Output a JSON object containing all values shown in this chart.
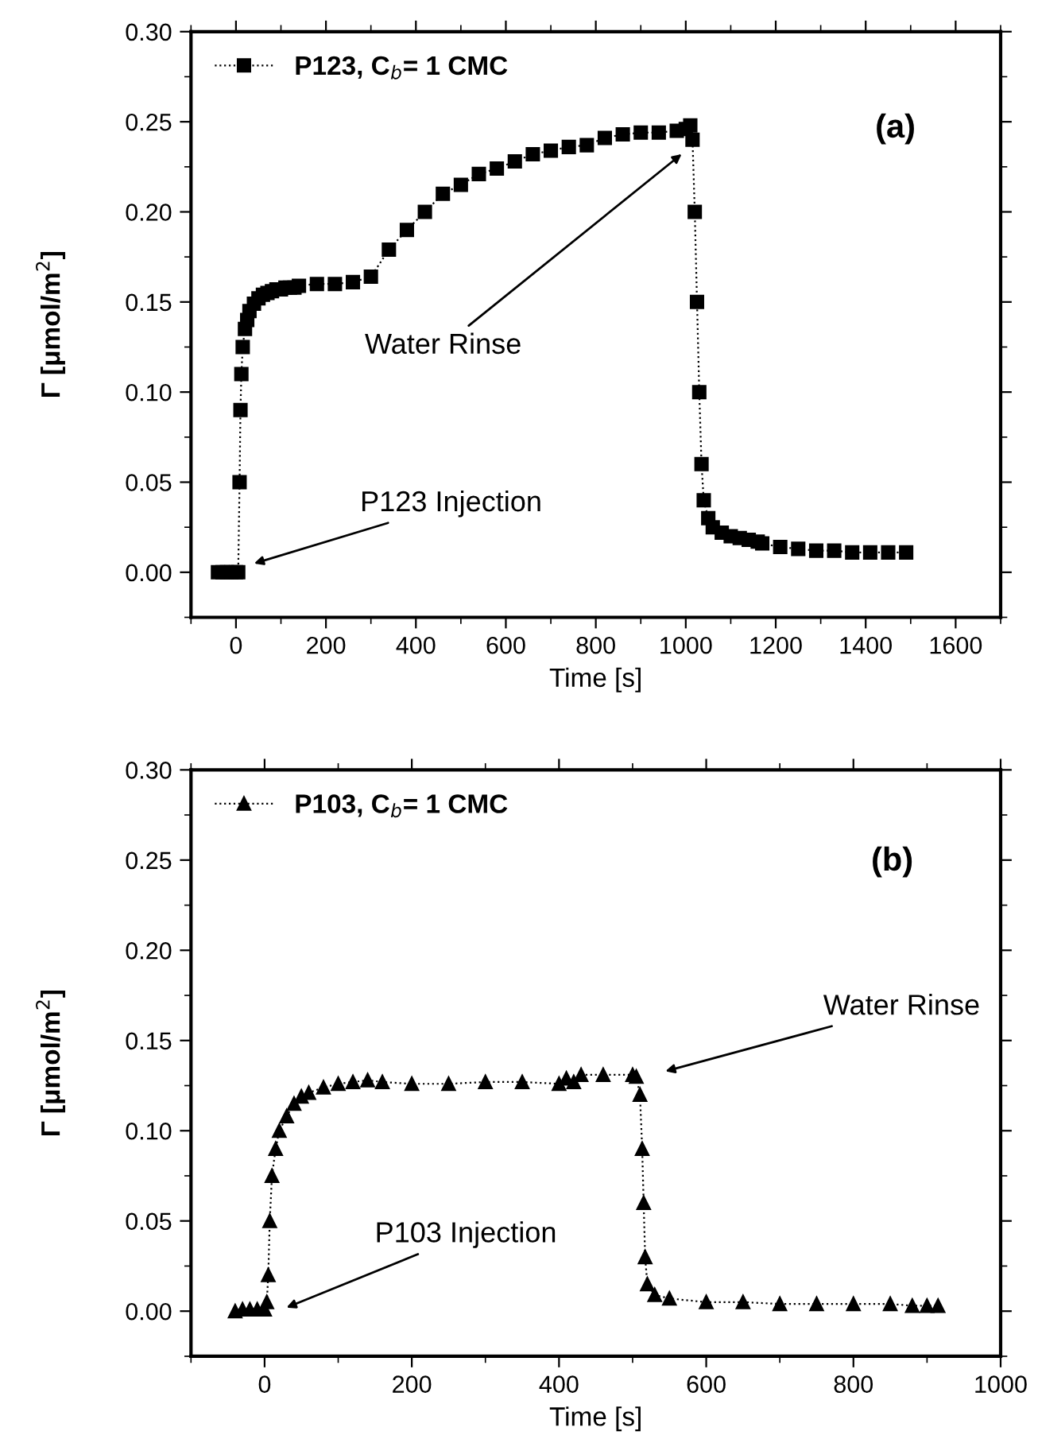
{
  "chart_data": [
    {
      "type": "line",
      "xlabel": "Time [s]",
      "ylabel": "Γ [μmol/m$^{2}$]",
      "xlim": [
        -100,
        1700
      ],
      "ylim": [
        -0.025,
        0.3
      ],
      "xticks": [
        0,
        200,
        400,
        600,
        800,
        1000,
        1200,
        1400,
        1600
      ],
      "yticks": [
        {
          "value": 0,
          "label": "0.00"
        },
        0.05,
        {
          "value": 0.1,
          "label": "0.10"
        },
        0.15,
        {
          "value": 0.2,
          "label": "0.20"
        },
        0.25,
        {
          "value": 0.3,
          "label": "0.30"
        }
      ],
      "grid": false,
      "legend": "top left",
      "marker": "square",
      "line_style": "dotted",
      "annotations": [
        "(a)",
        "P123 Injection",
        "Water Rinse"
      ],
      "series": [
        {
          "name": "P123, C$_{b}$= 1 CMC",
          "color": "#000000",
          "x": [
            -40,
            -30,
            -20,
            -10,
            0,
            5,
            8,
            10,
            12,
            15,
            20,
            25,
            30,
            40,
            50,
            60,
            70,
            80,
            90,
            100,
            110,
            120,
            130,
            140,
            180,
            220,
            260,
            300,
            340,
            380,
            420,
            460,
            500,
            540,
            580,
            620,
            660,
            700,
            740,
            780,
            820,
            860,
            900,
            940,
            980,
            1000,
            1010,
            1015,
            1020,
            1025,
            1030,
            1035,
            1040,
            1050,
            1060,
            1080,
            1100,
            1120,
            1140,
            1160,
            1170,
            1210,
            1250,
            1290,
            1330,
            1370,
            1410,
            1450,
            1490
          ],
          "values": [
            0,
            0,
            0,
            0,
            0,
            0,
            0.05,
            0.09,
            0.11,
            0.125,
            0.135,
            0.14,
            0.145,
            0.149,
            0.152,
            0.154,
            0.155,
            0.156,
            0.157,
            0.157,
            0.158,
            0.158,
            0.158,
            0.159,
            0.16,
            0.16,
            0.161,
            0.164,
            0.179,
            0.19,
            0.2,
            0.21,
            0.215,
            0.221,
            0.224,
            0.228,
            0.232,
            0.234,
            0.236,
            0.237,
            0.241,
            0.243,
            0.244,
            0.244,
            0.245,
            0.246,
            0.248,
            0.24,
            0.2,
            0.15,
            0.1,
            0.06,
            0.04,
            0.03,
            0.025,
            0.022,
            0.02,
            0.019,
            0.018,
            0.017,
            0.016,
            0.014,
            0.013,
            0.012,
            0.012,
            0.011,
            0.011,
            0.011,
            0.011
          ]
        }
      ]
    },
    {
      "type": "line",
      "xlabel": "Time [s]",
      "ylabel": "Γ [μmol/m$^{2}$]",
      "xlim": [
        -100,
        1000
      ],
      "ylim": [
        -0.025,
        0.3
      ],
      "xticks": [
        0,
        200,
        400,
        600,
        800,
        1000
      ],
      "yticks": [
        {
          "value": 0,
          "label": "0.00"
        },
        0.05,
        {
          "value": 0.1,
          "label": "0.10"
        },
        0.15,
        {
          "value": 0.2,
          "label": "0.20"
        },
        0.25,
        {
          "value": 0.3,
          "label": "0.30"
        }
      ],
      "grid": false,
      "legend": "top left",
      "marker": "triangle",
      "line_style": "dotted",
      "annotations": [
        "(b)",
        "Water Rinse",
        "P103 Injection"
      ],
      "series": [
        {
          "name": "P103, C$_{b}$= 1 CMC",
          "color": "#000000",
          "x": [
            -40,
            -30,
            -20,
            -10,
            0,
            3,
            5,
            7,
            10,
            15,
            20,
            30,
            40,
            50,
            60,
            80,
            100,
            120,
            140,
            160,
            200,
            250,
            300,
            350,
            400,
            410,
            420,
            430,
            460,
            500,
            505,
            510,
            513,
            515,
            517,
            520,
            530,
            550,
            600,
            650,
            700,
            750,
            800,
            850,
            880,
            900,
            915
          ],
          "values": [
            0,
            0.001,
            0.001,
            0.001,
            0.001,
            0.005,
            0.02,
            0.05,
            0.075,
            0.09,
            0.1,
            0.108,
            0.115,
            0.119,
            0.121,
            0.124,
            0.126,
            0.127,
            0.128,
            0.127,
            0.126,
            0.126,
            0.127,
            0.127,
            0.126,
            0.129,
            0.127,
            0.131,
            0.131,
            0.131,
            0.13,
            0.12,
            0.09,
            0.06,
            0.03,
            0.015,
            0.009,
            0.007,
            0.005,
            0.005,
            0.004,
            0.004,
            0.004,
            0.004,
            0.003,
            0.003,
            0.003
          ]
        }
      ]
    }
  ]
}
